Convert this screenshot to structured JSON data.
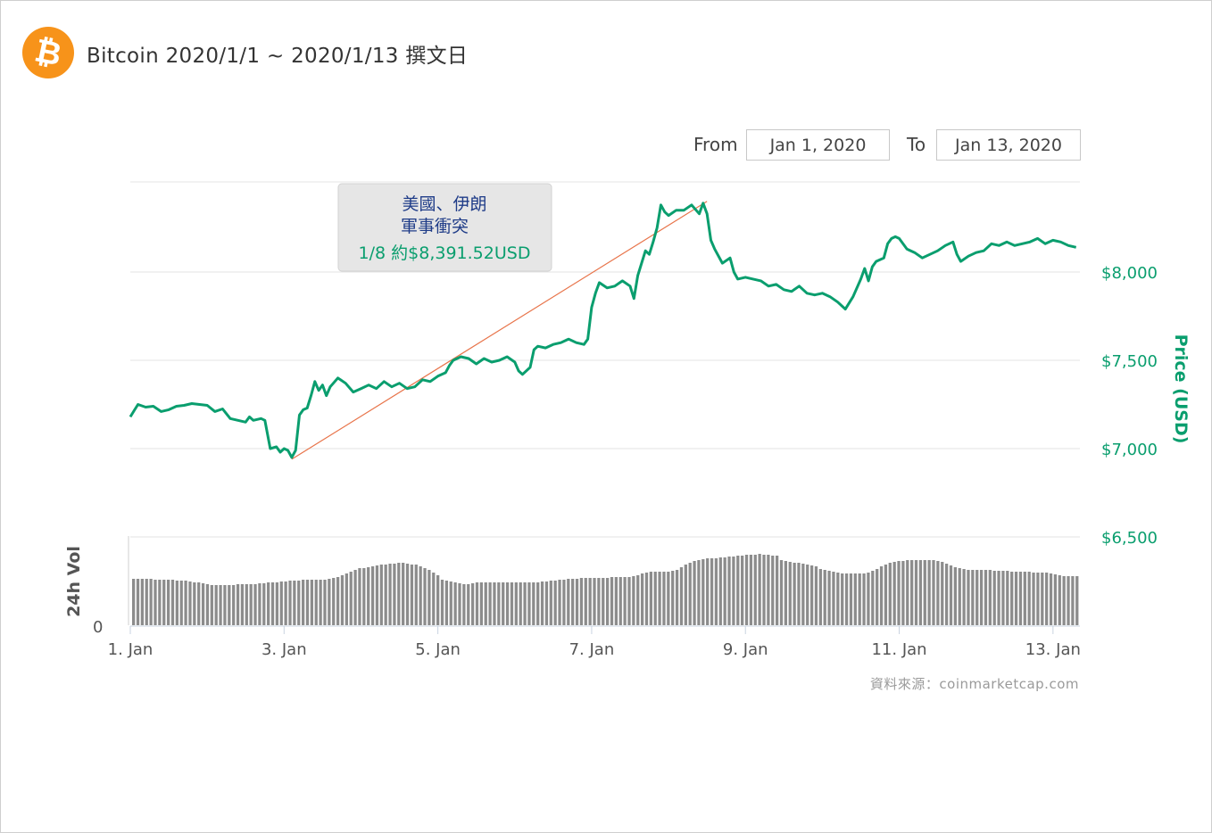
{
  "header": {
    "title": "Bitcoin 2020/1/1 ~ 2020/1/13 撰文日",
    "logo_glyph": "₿"
  },
  "range": {
    "from_label": "From",
    "from_value": "Jan 1, 2020",
    "to_label": "To",
    "to_value": "Jan 13, 2020"
  },
  "source": "資料來源：coinmarketcap.com",
  "colors": {
    "price_line": "#0a9e6e",
    "annotation_line": "#e8744a",
    "volume_bar": "#8c8c8c",
    "accent": "#f7931a"
  },
  "chart_data": {
    "type": "line",
    "x_unit": "day",
    "x_ticks": [
      {
        "day": 1,
        "label": "1. Jan"
      },
      {
        "day": 3,
        "label": "3. Jan"
      },
      {
        "day": 5,
        "label": "5. Jan"
      },
      {
        "day": 7,
        "label": "7. Jan"
      },
      {
        "day": 9,
        "label": "9. Jan"
      },
      {
        "day": 11,
        "label": "11. Jan"
      },
      {
        "day": 13,
        "label": "13. Jan"
      }
    ],
    "xlim": [
      1,
      13.35
    ],
    "ylabel": "Price (USD)",
    "ylim": [
      6500,
      8500
    ],
    "y_ticks": [
      {
        "value": 8000,
        "label": "$8,000"
      },
      {
        "value": 7500,
        "label": "$7,500"
      },
      {
        "value": 7000,
        "label": "$7,000"
      },
      {
        "value": 6500,
        "label": "$6,500"
      }
    ],
    "grid": true,
    "series": [
      {
        "points": [
          [
            1.0,
            7180
          ],
          [
            1.05,
            7215
          ],
          [
            1.1,
            7250
          ],
          [
            1.2,
            7235
          ],
          [
            1.3,
            7240
          ],
          [
            1.4,
            7210
          ],
          [
            1.5,
            7220
          ],
          [
            1.6,
            7240
          ],
          [
            1.7,
            7245
          ],
          [
            1.8,
            7255
          ],
          [
            1.9,
            7250
          ],
          [
            2.0,
            7245
          ],
          [
            2.1,
            7210
          ],
          [
            2.2,
            7225
          ],
          [
            2.3,
            7170
          ],
          [
            2.4,
            7160
          ],
          [
            2.5,
            7150
          ],
          [
            2.55,
            7180
          ],
          [
            2.6,
            7160
          ],
          [
            2.7,
            7170
          ],
          [
            2.75,
            7160
          ],
          [
            2.82,
            7000
          ],
          [
            2.9,
            7010
          ],
          [
            2.95,
            6980
          ],
          [
            3.0,
            7000
          ],
          [
            3.05,
            6990
          ],
          [
            3.1,
            6950
          ],
          [
            3.15,
            6990
          ],
          [
            3.2,
            7190
          ],
          [
            3.25,
            7220
          ],
          [
            3.3,
            7230
          ],
          [
            3.35,
            7300
          ],
          [
            3.4,
            7380
          ],
          [
            3.45,
            7330
          ],
          [
            3.5,
            7360
          ],
          [
            3.55,
            7300
          ],
          [
            3.6,
            7350
          ],
          [
            3.7,
            7400
          ],
          [
            3.8,
            7370
          ],
          [
            3.9,
            7320
          ],
          [
            4.0,
            7340
          ],
          [
            4.1,
            7360
          ],
          [
            4.2,
            7340
          ],
          [
            4.3,
            7380
          ],
          [
            4.4,
            7350
          ],
          [
            4.5,
            7370
          ],
          [
            4.6,
            7340
          ],
          [
            4.7,
            7350
          ],
          [
            4.8,
            7390
          ],
          [
            4.9,
            7380
          ],
          [
            5.0,
            7410
          ],
          [
            5.1,
            7430
          ],
          [
            5.15,
            7470
          ],
          [
            5.2,
            7500
          ],
          [
            5.3,
            7520
          ],
          [
            5.4,
            7510
          ],
          [
            5.5,
            7480
          ],
          [
            5.6,
            7510
          ],
          [
            5.7,
            7490
          ],
          [
            5.8,
            7500
          ],
          [
            5.9,
            7520
          ],
          [
            6.0,
            7490
          ],
          [
            6.05,
            7440
          ],
          [
            6.1,
            7420
          ],
          [
            6.2,
            7460
          ],
          [
            6.25,
            7560
          ],
          [
            6.3,
            7580
          ],
          [
            6.4,
            7570
          ],
          [
            6.5,
            7590
          ],
          [
            6.6,
            7600
          ],
          [
            6.7,
            7620
          ],
          [
            6.8,
            7600
          ],
          [
            6.9,
            7590
          ],
          [
            6.95,
            7620
          ],
          [
            7.0,
            7800
          ],
          [
            7.05,
            7880
          ],
          [
            7.1,
            7940
          ],
          [
            7.2,
            7910
          ],
          [
            7.3,
            7920
          ],
          [
            7.4,
            7950
          ],
          [
            7.5,
            7920
          ],
          [
            7.55,
            7850
          ],
          [
            7.6,
            7980
          ],
          [
            7.65,
            8050
          ],
          [
            7.7,
            8120
          ],
          [
            7.75,
            8100
          ],
          [
            7.8,
            8170
          ],
          [
            7.85,
            8250
          ],
          [
            7.9,
            8380
          ],
          [
            7.95,
            8340
          ],
          [
            8.0,
            8320
          ],
          [
            8.1,
            8350
          ],
          [
            8.2,
            8350
          ],
          [
            8.3,
            8380
          ],
          [
            8.4,
            8330
          ],
          [
            8.45,
            8390
          ],
          [
            8.5,
            8330
          ],
          [
            8.55,
            8180
          ],
          [
            8.6,
            8130
          ],
          [
            8.7,
            8050
          ],
          [
            8.8,
            8080
          ],
          [
            8.85,
            8000
          ],
          [
            8.9,
            7960
          ],
          [
            9.0,
            7970
          ],
          [
            9.1,
            7960
          ],
          [
            9.2,
            7950
          ],
          [
            9.3,
            7920
          ],
          [
            9.4,
            7930
          ],
          [
            9.5,
            7900
          ],
          [
            9.6,
            7890
          ],
          [
            9.7,
            7920
          ],
          [
            9.8,
            7880
          ],
          [
            9.9,
            7870
          ],
          [
            10.0,
            7880
          ],
          [
            10.1,
            7860
          ],
          [
            10.2,
            7830
          ],
          [
            10.3,
            7790
          ],
          [
            10.4,
            7860
          ],
          [
            10.5,
            7960
          ],
          [
            10.55,
            8020
          ],
          [
            10.6,
            7950
          ],
          [
            10.65,
            8030
          ],
          [
            10.7,
            8060
          ],
          [
            10.8,
            8080
          ],
          [
            10.85,
            8160
          ],
          [
            10.9,
            8190
          ],
          [
            10.95,
            8200
          ],
          [
            11.0,
            8190
          ],
          [
            11.1,
            8130
          ],
          [
            11.2,
            8110
          ],
          [
            11.3,
            8080
          ],
          [
            11.4,
            8100
          ],
          [
            11.5,
            8120
          ],
          [
            11.6,
            8150
          ],
          [
            11.7,
            8170
          ],
          [
            11.75,
            8100
          ],
          [
            11.8,
            8060
          ],
          [
            11.9,
            8090
          ],
          [
            12.0,
            8110
          ],
          [
            12.1,
            8120
          ],
          [
            12.2,
            8160
          ],
          [
            12.3,
            8150
          ],
          [
            12.4,
            8170
          ],
          [
            12.5,
            8150
          ],
          [
            12.6,
            8160
          ],
          [
            12.7,
            8170
          ],
          [
            12.8,
            8190
          ],
          [
            12.9,
            8160
          ],
          [
            13.0,
            8180
          ],
          [
            13.1,
            8170
          ],
          [
            13.2,
            8150
          ],
          [
            13.3,
            8140
          ]
        ]
      }
    ],
    "trend_line": {
      "from": [
        3.1,
        6940
      ],
      "to": [
        8.5,
        8400
      ]
    },
    "annotation": {
      "line1": "美國、伊朗",
      "line2": "軍事衝突",
      "line3": "1/8  約$8,391.52USD"
    },
    "volume": {
      "ylabel": "24h Vol",
      "zero_label": "0",
      "values": [
        52,
        52,
        52,
        52,
        52,
        51,
        51,
        51,
        51,
        51,
        50,
        50,
        50,
        49,
        48,
        48,
        47,
        46,
        45,
        45,
        45,
        45,
        45,
        45,
        46,
        46,
        46,
        46,
        46,
        47,
        47,
        48,
        48,
        48,
        49,
        49,
        50,
        50,
        50,
        51,
        51,
        51,
        51,
        51,
        51,
        52,
        53,
        54,
        56,
        58,
        60,
        62,
        64,
        64,
        65,
        66,
        67,
        68,
        68,
        69,
        69,
        70,
        70,
        69,
        68,
        68,
        66,
        64,
        62,
        59,
        56,
        51,
        50,
        49,
        48,
        47,
        46,
        46,
        47,
        48,
        48,
        48,
        48,
        48,
        48,
        48,
        48,
        48,
        48,
        48,
        48,
        48,
        48,
        48,
        49,
        49,
        50,
        50,
        51,
        51,
        52,
        52,
        52,
        53,
        53,
        53,
        53,
        53,
        53,
        53,
        54,
        54,
        54,
        54,
        54,
        55,
        56,
        58,
        59,
        60,
        60,
        60,
        60,
        60,
        61,
        62,
        65,
        68,
        70,
        72,
        73,
        74,
        75,
        75,
        75,
        76,
        76,
        77,
        77,
        78,
        78,
        79,
        79,
        79,
        80,
        79,
        79,
        78,
        78,
        73,
        72,
        71,
        70,
        70,
        69,
        68,
        67,
        66,
        63,
        62,
        61,
        60,
        59,
        58,
        58,
        58,
        58,
        58,
        58,
        59,
        61,
        63,
        66,
        68,
        70,
        71,
        72,
        72,
        73,
        73,
        73,
        73,
        73,
        73,
        73,
        72,
        71,
        69,
        67,
        65,
        64,
        63,
        62,
        62,
        62,
        62,
        62,
        62,
        61,
        61,
        61,
        61,
        60,
        60,
        60,
        60,
        60,
        59,
        59,
        59,
        59,
        58,
        57,
        56,
        55,
        55,
        55,
        55
      ]
    }
  }
}
